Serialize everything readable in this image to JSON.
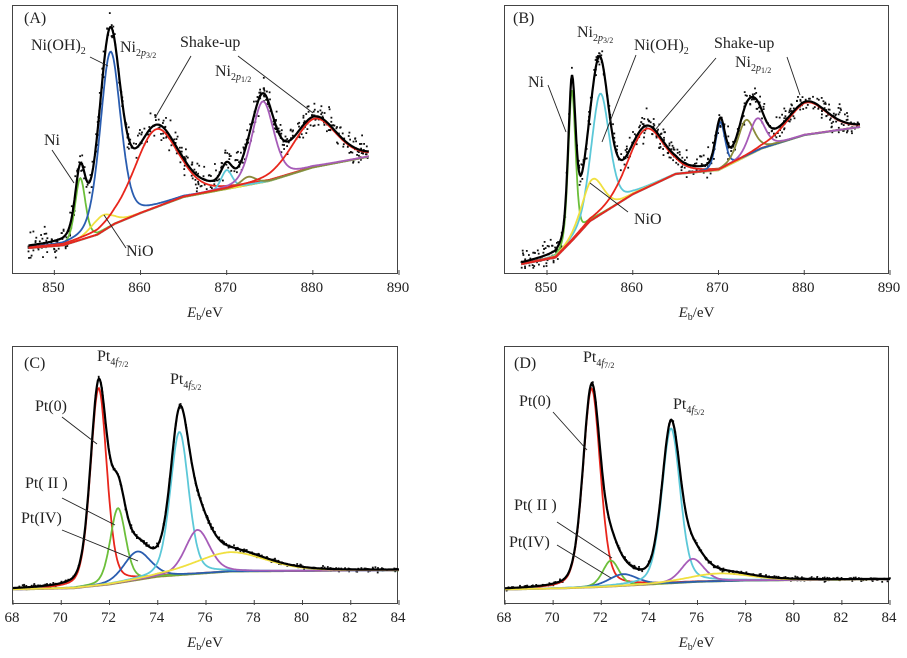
{
  "chart_data": [
    {
      "panel": "A",
      "type": "line",
      "panel_label": "(A)",
      "xlabel": {
        "main": "E",
        "sub": "b",
        "unit": "/eV"
      },
      "xlim": [
        845.2,
        890
      ],
      "ylim": [
        0,
        1
      ],
      "xticks": [
        850,
        860,
        870,
        880,
        890
      ],
      "grid": false,
      "data_range": [
        847,
        886.5
      ],
      "background": [
        [
          847,
          0.1
        ],
        [
          851,
          0.11
        ],
        [
          853,
          0.13
        ],
        [
          855,
          0.15
        ],
        [
          857,
          0.19
        ],
        [
          860,
          0.23
        ],
        [
          865,
          0.29
        ],
        [
          870,
          0.32
        ],
        [
          875,
          0.35
        ],
        [
          880,
          0.4
        ],
        [
          886.5,
          0.44
        ]
      ],
      "components": [
        {
          "color": "#6cbf3a",
          "center": 853.0,
          "height": 0.23,
          "fwhm": 1.4
        },
        {
          "color": "#2a5db0",
          "center": 856.5,
          "height": 0.65,
          "fwhm": 2.8
        },
        {
          "color": "#f0e040",
          "center": 855.5,
          "height": 0.06,
          "fwhm": 3.0
        },
        {
          "color": "#e8261c",
          "center": 861.8,
          "height": 0.29,
          "fwhm": 6.0
        },
        {
          "color": "#5cc8d8",
          "center": 870.0,
          "height": 0.07,
          "fwhm": 1.5
        },
        {
          "color": "#8a8a3a",
          "center": 872.5,
          "height": 0.03,
          "fwhm": 2.0
        },
        {
          "color": "#a65cb8",
          "center": 874.2,
          "height": 0.3,
          "fwhm": 3.0
        },
        {
          "color": "#e8261c",
          "center": 880.2,
          "height": 0.18,
          "fwhm": 6.0
        }
      ],
      "annotations": [
        {
          "main": "Ni(OH)",
          "sub": "2",
          "subsub": ""
        },
        {
          "main": "Ni",
          "sub": "2p",
          "subsub": "3/2"
        },
        {
          "main": "Shake-up",
          "sub": "",
          "subsub": ""
        },
        {
          "main": "Ni",
          "sub": "2p",
          "subsub": "1/2"
        },
        {
          "main": "Ni",
          "sub": "",
          "subsub": ""
        },
        {
          "main": "NiO",
          "sub": "",
          "subsub": ""
        }
      ]
    },
    {
      "panel": "B",
      "type": "line",
      "panel_label": "(B)",
      "xlabel": {
        "main": "E",
        "sub": "b",
        "unit": "/eV"
      },
      "xlim": [
        845.1,
        890
      ],
      "ylim": [
        0,
        1
      ],
      "xticks": [
        850,
        860,
        870,
        880,
        890
      ],
      "grid": false,
      "data_range": [
        847,
        886.5
      ],
      "background": [
        [
          847,
          0.04
        ],
        [
          851,
          0.065
        ],
        [
          853,
          0.13
        ],
        [
          855,
          0.2
        ],
        [
          860,
          0.3
        ],
        [
          865,
          0.375
        ],
        [
          870,
          0.39
        ],
        [
          875,
          0.47
        ],
        [
          880,
          0.52
        ],
        [
          886.5,
          0.55
        ]
      ],
      "components": [
        {
          "color": "#6cbf3a",
          "center": 852.9,
          "height": 0.56,
          "fwhm": 1.0
        },
        {
          "color": "#5cc8d8",
          "center": 856.2,
          "height": 0.45,
          "fwhm": 2.5
        },
        {
          "color": "#f0e040",
          "center": 855.3,
          "height": 0.15,
          "fwhm": 3.0
        },
        {
          "color": "#e8261c",
          "center": 861.5,
          "height": 0.22,
          "fwhm": 5.0
        },
        {
          "color": "#2a5db0",
          "center": 870.2,
          "height": 0.175,
          "fwhm": 1.3
        },
        {
          "color": "#8a8a3a",
          "center": 873.2,
          "height": 0.135,
          "fwhm": 2.2
        },
        {
          "color": "#a65cb8",
          "center": 874.5,
          "height": 0.12,
          "fwhm": 2.2
        },
        {
          "color": "#e8261c",
          "center": 880.3,
          "height": 0.12,
          "fwhm": 5.5
        }
      ],
      "annotations": [
        {
          "main": "Ni",
          "sub": "2p",
          "subsub": "3/2"
        },
        {
          "main": "Ni(OH)",
          "sub": "2",
          "subsub": ""
        },
        {
          "main": "Shake-up",
          "sub": "",
          "subsub": ""
        },
        {
          "main": "Ni",
          "sub": "2p",
          "subsub": "1/2"
        },
        {
          "main": "Ni",
          "sub": "",
          "subsub": ""
        },
        {
          "main": "NiO",
          "sub": "",
          "subsub": ""
        }
      ]
    },
    {
      "panel": "C",
      "type": "line",
      "panel_label": "(C)",
      "xlabel": {
        "main": "E",
        "sub": "b",
        "unit": "/eV"
      },
      "xlim": [
        68,
        84
      ],
      "ylim": [
        0,
        1
      ],
      "xticks": [
        68,
        70,
        72,
        74,
        76,
        78,
        80,
        82,
        84
      ],
      "grid": false,
      "data_range": [
        68,
        84
      ],
      "background": [
        [
          68,
          0.06
        ],
        [
          70.5,
          0.065
        ],
        [
          72,
          0.08
        ],
        [
          73,
          0.095
        ],
        [
          74,
          0.11
        ],
        [
          75.5,
          0.12
        ],
        [
          77,
          0.13
        ],
        [
          84,
          0.135
        ]
      ],
      "components": [
        {
          "color": "#e8261c",
          "center": 71.55,
          "height": 0.765,
          "fwhm": 0.8
        },
        {
          "color": "#6cbf3a",
          "center": 72.35,
          "height": 0.29,
          "fwhm": 0.75
        },
        {
          "color": "#2a5db0",
          "center": 73.15,
          "height": 0.11,
          "fwhm": 1.3
        },
        {
          "color": "#5cc8d8",
          "center": 74.9,
          "height": 0.555,
          "fwhm": 0.9
        },
        {
          "color": "#a65cb8",
          "center": 75.65,
          "height": 0.17,
          "fwhm": 1.2
        },
        {
          "color": "#f0e040",
          "center": 77.0,
          "height": 0.075,
          "fwhm": 3.5
        }
      ],
      "annotations": [
        {
          "main": "Pt",
          "sub": "4f",
          "subsub": "7/2"
        },
        {
          "main": "Pt",
          "sub": "4f",
          "subsub": "5/2"
        },
        {
          "main": "Pt(0)",
          "sub": "",
          "subsub": ""
        },
        {
          "main": "Pt( II )",
          "sub": "",
          "subsub": ""
        },
        {
          "main": "Pt(IV)",
          "sub": "",
          "subsub": ""
        }
      ]
    },
    {
      "panel": "D",
      "type": "line",
      "panel_label": "(D)",
      "xlabel": {
        "main": "E",
        "sub": "b",
        "unit": "/eV"
      },
      "xlim": [
        68,
        84
      ],
      "ylim": [
        0,
        1
      ],
      "xticks": [
        68,
        70,
        72,
        74,
        76,
        78,
        80,
        82,
        84
      ],
      "grid": false,
      "data_range": [
        68,
        84
      ],
      "background": [
        [
          68,
          0.06
        ],
        [
          70.5,
          0.065
        ],
        [
          72,
          0.07
        ],
        [
          74,
          0.08
        ],
        [
          76,
          0.09
        ],
        [
          78,
          0.095
        ],
        [
          84,
          0.1
        ]
      ],
      "components": [
        {
          "color": "#e8261c",
          "center": 71.6,
          "height": 0.77,
          "fwhm": 0.85
        },
        {
          "color": "#6cbf3a",
          "center": 72.4,
          "height": 0.1,
          "fwhm": 0.8
        },
        {
          "color": "#2a5db0",
          "center": 72.9,
          "height": 0.045,
          "fwhm": 1.4
        },
        {
          "color": "#5cc8d8",
          "center": 74.9,
          "height": 0.6,
          "fwhm": 0.9
        },
        {
          "color": "#a65cb8",
          "center": 75.8,
          "height": 0.09,
          "fwhm": 1.1
        },
        {
          "color": "#f0e040",
          "center": 76.9,
          "height": 0.03,
          "fwhm": 3.0
        }
      ],
      "annotations": [
        {
          "main": "Pt",
          "sub": "4f",
          "subsub": "7/2"
        },
        {
          "main": "Pt",
          "sub": "4f",
          "subsub": "5/2"
        },
        {
          "main": "Pt(0)",
          "sub": "",
          "subsub": ""
        },
        {
          "main": "Pt( II )",
          "sub": "",
          "subsub": ""
        },
        {
          "main": "Pt(IV)",
          "sub": "",
          "subsub": ""
        }
      ]
    }
  ],
  "colors": {
    "envelope": "#000000",
    "background": "#8a8a3a",
    "frame": "#444444"
  }
}
